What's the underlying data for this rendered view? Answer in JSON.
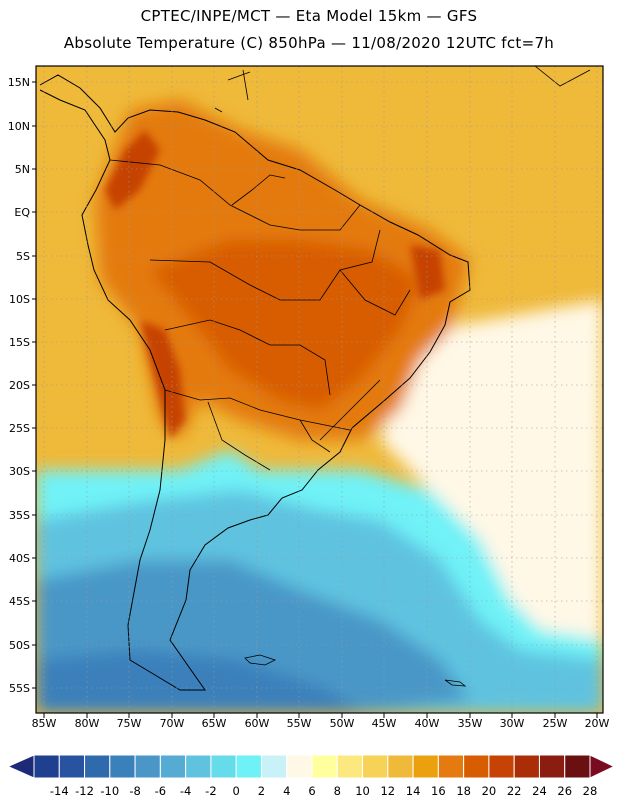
{
  "header": {
    "line1": "CPTEC/INPE/MCT —  Eta Model 15km — GFS",
    "line2": "Absolute Temperature (C) 850hPa — 11/08/2020 12UTC fct=7h"
  },
  "axes": {
    "lat_labels": [
      "15N",
      "10N",
      "5N",
      "EQ",
      "5S",
      "10S",
      "15S",
      "20S",
      "25S",
      "30S",
      "35S",
      "40S",
      "45S",
      "50S",
      "55S"
    ],
    "lon_labels": [
      "85W",
      "80W",
      "75W",
      "70W",
      "65W",
      "60W",
      "55W",
      "50W",
      "45W",
      "40W",
      "35W",
      "30W",
      "25W",
      "20W"
    ],
    "graticule": "dotted"
  },
  "colorbar": {
    "labels": [
      "-14",
      "-12",
      "-10",
      "-8",
      "-6",
      "-4",
      "-2",
      "0",
      "2",
      "4",
      "6",
      "8",
      "10",
      "12",
      "14",
      "16",
      "18",
      "20",
      "22",
      "24",
      "26",
      "28"
    ],
    "colors": [
      "#1f3f8f",
      "#2753a0",
      "#2f6aad",
      "#3a80bb",
      "#4a97c7",
      "#56abd2",
      "#5fc3e0",
      "#66dbea",
      "#6ff2f7",
      "#c8f2f8",
      "#fff8e6",
      "#ffff9e",
      "#fbe980",
      "#f6d256",
      "#efb93a",
      "#eba10f",
      "#e47a10",
      "#d85c00",
      "#c64305",
      "#aa2d07",
      "#8a1c10",
      "#6a1010"
    ],
    "low_arrow_color": "#1d2a78",
    "high_arrow_color": "#7a0a20"
  },
  "map_colors": {
    "frame": "#000000",
    "ocean_warm": "#efb93a",
    "ocean_mid": "#f6d256",
    "ocean_pale": "#fff8e6",
    "ocean_cold1": "#6ff2f7",
    "ocean_cold2": "#5fc3e0",
    "ocean_cold3": "#4a97c7",
    "ocean_cold4": "#3a80bb",
    "land_hot1": "#e47a10",
    "land_hot2": "#d85c00",
    "land_hot3": "#c64305",
    "land_hot4": "#aa2d07"
  }
}
